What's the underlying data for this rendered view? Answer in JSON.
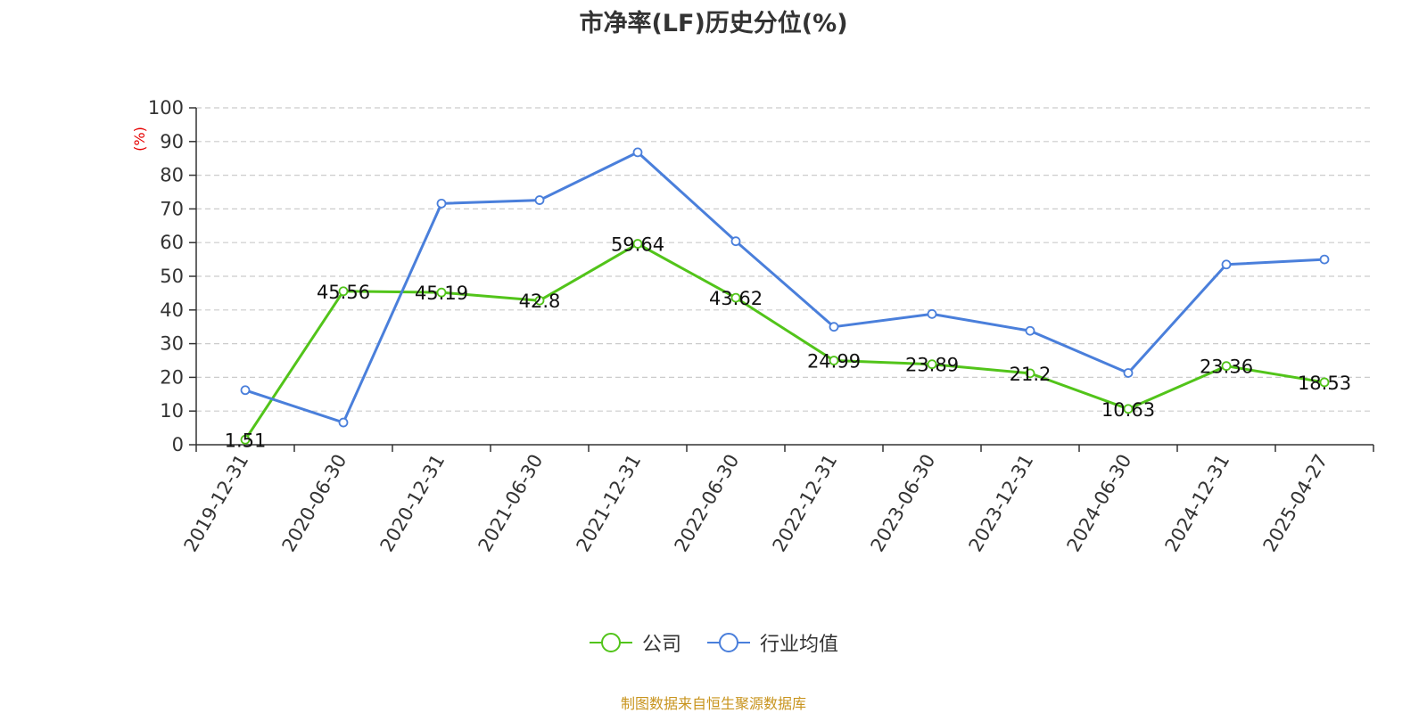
{
  "chart_data": {
    "type": "line",
    "title": "市净率(LF)历史分位(%)",
    "ylabel": "(%)",
    "xlabel": "",
    "ylim": [
      0,
      100
    ],
    "yticks": [
      0,
      10,
      20,
      30,
      40,
      50,
      60,
      70,
      80,
      90,
      100
    ],
    "grid": true,
    "legend_position": "bottom",
    "categories": [
      "2019-12-31",
      "2020-06-30",
      "2020-12-31",
      "2021-06-30",
      "2021-12-31",
      "2022-06-30",
      "2022-12-31",
      "2023-06-30",
      "2023-12-31",
      "2024-06-30",
      "2024-12-31",
      "2025-04-27"
    ],
    "series": [
      {
        "name": "公司",
        "color": "#52c41a",
        "show_labels": true,
        "values": [
          1.51,
          45.56,
          45.19,
          42.8,
          59.64,
          43.62,
          24.99,
          23.89,
          21.2,
          10.63,
          23.36,
          18.53
        ]
      },
      {
        "name": "行业均值",
        "color": "#4a7fdb",
        "show_labels": false,
        "values": [
          16.2,
          6.6,
          71.6,
          72.6,
          86.8,
          60.4,
          35.0,
          38.8,
          33.8,
          21.3,
          53.5,
          55.0
        ]
      }
    ],
    "ylabel_color": "#e60000"
  },
  "source_note": "制图数据来自恒生聚源数据库"
}
